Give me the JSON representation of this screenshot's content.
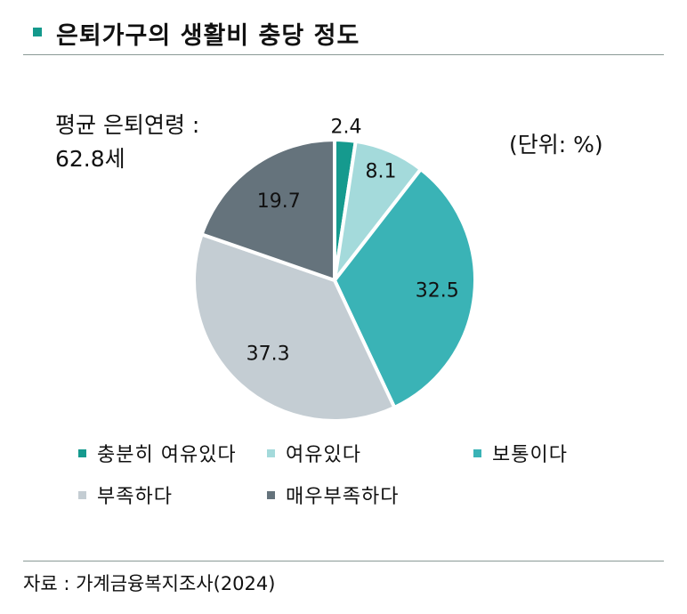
{
  "title": "은퇴가구의 생활비 충당 정도",
  "average_age_label": "평균 은퇴연령 :\n62.8세",
  "unit_label": "(단위: %)",
  "source": "자료 : 가계금융복지조사(2024)",
  "chart_data": {
    "type": "pie",
    "categories": [
      "충분히 여유있다",
      "여유있다",
      "보통이다",
      "부족하다",
      "매우부족하다"
    ],
    "values": [
      2.4,
      8.1,
      32.5,
      37.3,
      19.7
    ],
    "labels": [
      "2.4",
      "8.1",
      "32.5",
      "37.3",
      "19.7"
    ],
    "colors": [
      "#159a8e",
      "#a4dadb",
      "#3ab3b6",
      "#c4cdd3",
      "#65737c"
    ],
    "start_angle": "12 o'clock",
    "direction": "clockwise",
    "legend_position": "bottom",
    "unit": "%"
  }
}
